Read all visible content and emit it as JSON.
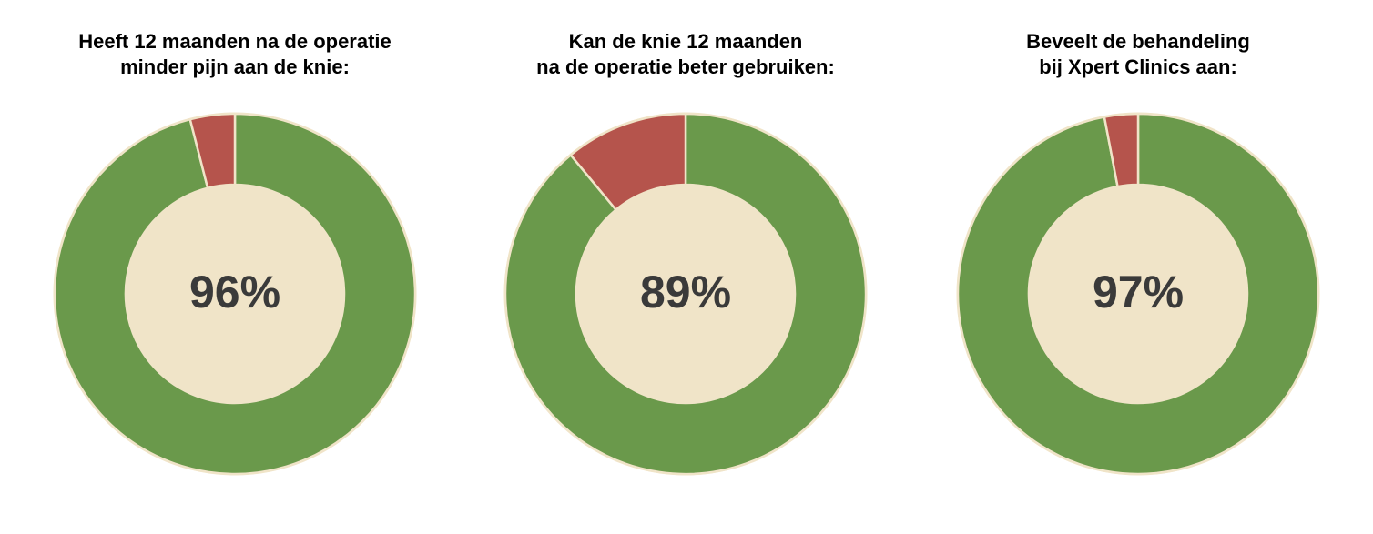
{
  "chart_data": [
    {
      "type": "donut",
      "title": [
        "Heeft 12 maanden na de operatie",
        "minder pijn aan de knie:"
      ],
      "values": [
        96,
        4
      ],
      "value_labels": [
        "96%",
        null
      ],
      "colors": [
        "#6a994b",
        "#b5544c"
      ]
    },
    {
      "type": "donut",
      "title": [
        "Kan de knie 12 maanden",
        "na de operatie beter gebruiken:"
      ],
      "values": [
        89,
        11
      ],
      "value_labels": [
        "89%",
        null
      ],
      "colors": [
        "#6a994b",
        "#b5544c"
      ]
    },
    {
      "type": "donut",
      "title": [
        "Beveelt de behandeling",
        "bij Xpert Clinics aan:"
      ],
      "values": [
        97,
        3
      ],
      "value_labels": [
        "97%",
        null
      ],
      "colors": [
        "#6a994b",
        "#b5544c"
      ]
    }
  ]
}
